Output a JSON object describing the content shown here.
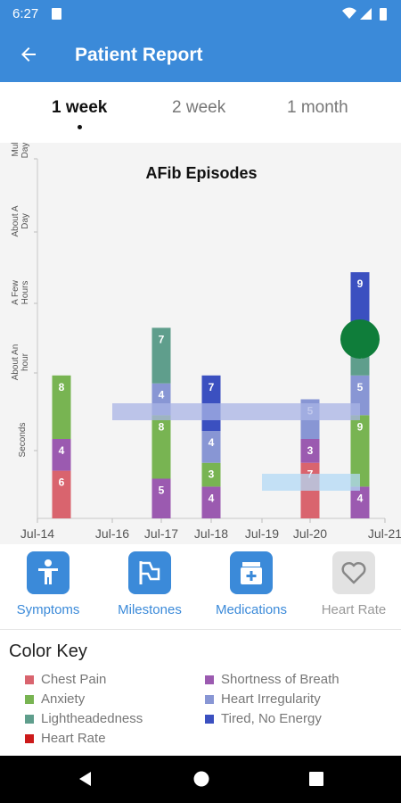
{
  "status_bar": {
    "time": "6:27"
  },
  "app_bar": {
    "title": "Patient Report"
  },
  "tabs": [
    {
      "label": "1 week",
      "active": true
    },
    {
      "label": "2 week",
      "active": false
    },
    {
      "label": "1 month",
      "active": false
    }
  ],
  "chart_data": {
    "type": "bar",
    "title": "AFib Episodes",
    "y_levels": [
      "Seconds",
      "About An hour",
      "A Few Hours",
      "About A Day",
      "Mult Days"
    ],
    "x_ticks": [
      "Jul-14",
      "Jul-16",
      "Jul-17",
      "Jul-18",
      "Jul-19",
      "Jul-20",
      "Jul-21"
    ],
    "stacked_bars": [
      {
        "date": "Jul-14",
        "segments": [
          {
            "symptom": "Chest Pain",
            "count": 6
          },
          {
            "symptom": "Shortness of Breath",
            "count": 4
          },
          {
            "symptom": "Anxiety",
            "count": 8
          }
        ]
      },
      {
        "date": "Jul-17",
        "segments": [
          {
            "symptom": "Shortness of Breath",
            "count": 5
          },
          {
            "symptom": "Anxiety",
            "count": 8
          },
          {
            "symptom": "Heart Irregularity",
            "count": 4
          },
          {
            "symptom": "Lightheadedness",
            "count": 7
          }
        ]
      },
      {
        "date": "Jul-18",
        "segments": [
          {
            "symptom": "Shortness of Breath",
            "count": 4
          },
          {
            "symptom": "Anxiety",
            "count": 3
          },
          {
            "symptom": "Heart Irregularity",
            "count": 4
          },
          {
            "symptom": "Tired, No Energy",
            "count": 7
          }
        ]
      },
      {
        "date": "Jul-20",
        "segments": [
          {
            "symptom": "Chest Pain",
            "count": 7
          },
          {
            "symptom": "Shortness of Breath",
            "count": 3
          },
          {
            "symptom": "Heart Irregularity",
            "count": 5
          }
        ]
      },
      {
        "date": "Jul-21",
        "segments": [
          {
            "symptom": "Shortness of Breath",
            "count": 4
          },
          {
            "symptom": "Anxiety",
            "count": 9
          },
          {
            "symptom": "Heart Irregularity",
            "count": 5
          },
          {
            "symptom": "Lightheadedness",
            "count": 4
          },
          {
            "symptom": "Tired, No Energy",
            "count": 9
          }
        ]
      }
    ],
    "medication_bands": [
      {
        "from": "Jul-16",
        "to": "Jul-21",
        "color": "#aab4e6"
      },
      {
        "from": "Jul-19",
        "to": "Jul-21",
        "color": "#b3daf5"
      }
    ],
    "heart_rate_marker": {
      "date": "Jul-21",
      "color": "#0f7d3a"
    }
  },
  "categories": [
    {
      "label": "Symptoms",
      "icon": "person-icon",
      "enabled": true
    },
    {
      "label": "Milestones",
      "icon": "flag-icon",
      "enabled": true
    },
    {
      "label": "Medications",
      "icon": "pill-bottle-icon",
      "enabled": true
    },
    {
      "label": "Heart Rate",
      "icon": "heart-icon",
      "enabled": false
    }
  ],
  "color_key": {
    "title": "Color Key",
    "items": [
      {
        "label": "Chest Pain",
        "color": "#d9646e"
      },
      {
        "label": "Shortness of Breath",
        "color": "#9b5ab0"
      },
      {
        "label": "Anxiety",
        "color": "#78b452"
      },
      {
        "label": "Heart Irregularity",
        "color": "#8896d4"
      },
      {
        "label": "Lightheadedness",
        "color": "#5f9e8c"
      },
      {
        "label": "Tired, No Energy",
        "color": "#3b50c0"
      },
      {
        "label": "Heart Rate",
        "color": "#cc1a1a"
      }
    ]
  },
  "colors": {
    "brand": "#3b8ad9",
    "chart_bg": "#f4f4f4"
  }
}
